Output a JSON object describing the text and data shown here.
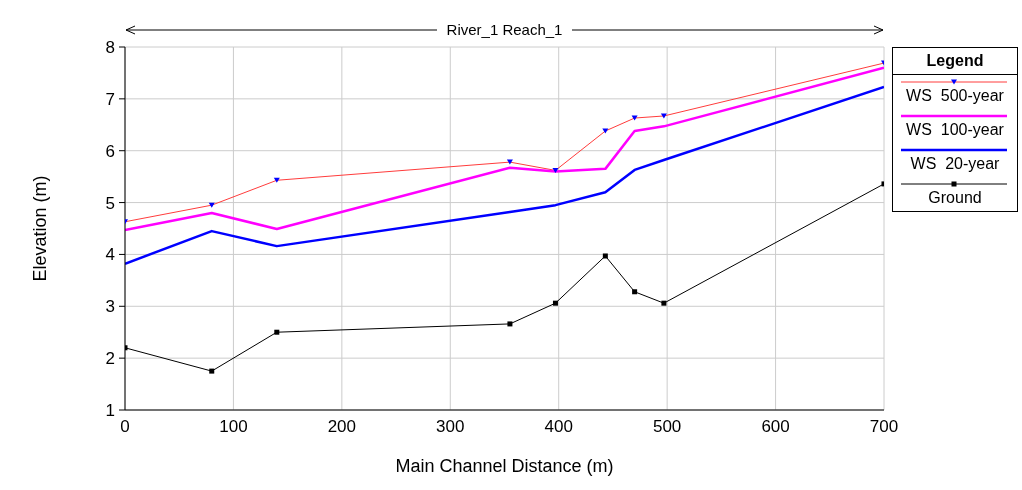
{
  "chart_data": {
    "type": "line",
    "title": "River_1 Reach_1",
    "xlabel": "Main Channel Distance (m)",
    "ylabel": "Elevation (m)",
    "legend_title": "Legend",
    "x": [
      0,
      80,
      140,
      355,
      397,
      443,
      470,
      497,
      700
    ],
    "series": [
      {
        "name": "WS  500-year",
        "color": "#ff3c3c",
        "marker": "triangle",
        "values": [
          4.63,
          4.95,
          5.43,
          5.78,
          5.62,
          6.38,
          6.63,
          6.67,
          7.69
        ]
      },
      {
        "name": "WS  100-year",
        "color": "#ff00ff",
        "marker": "none",
        "values": [
          4.47,
          4.8,
          4.49,
          5.67,
          5.6,
          5.65,
          6.38,
          6.47,
          7.6
        ]
      },
      {
        "name": "WS  20-year",
        "color": "#0000ff",
        "marker": "none",
        "values": [
          3.82,
          4.45,
          4.16,
          4.82,
          4.95,
          5.2,
          5.63,
          5.82,
          7.23
        ]
      },
      {
        "name": "Ground",
        "color": "#000000",
        "marker": "square",
        "values": [
          2.2,
          1.75,
          2.5,
          2.66,
          3.06,
          3.97,
          3.28,
          3.06,
          5.36
        ]
      }
    ],
    "xlim": [
      0,
      700
    ],
    "xticks": [
      0,
      100,
      200,
      300,
      400,
      500,
      600,
      700
    ],
    "ylim": [
      1,
      8
    ],
    "yticks": [
      1,
      2,
      3,
      4,
      5,
      6,
      7,
      8
    ],
    "grid": true,
    "legend": "right",
    "line_style": "solid"
  }
}
